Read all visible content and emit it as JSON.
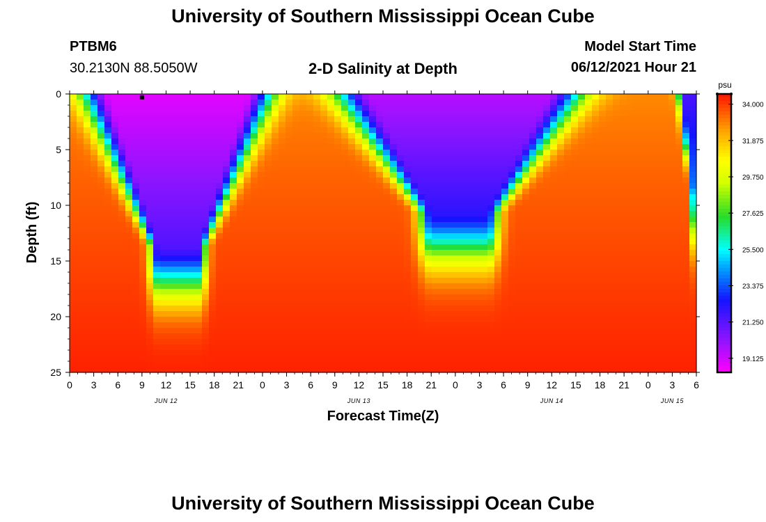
{
  "page": {
    "title_top": "University of Southern Mississippi Ocean Cube",
    "title_bottom": "University of Southern Mississippi Ocean Cube",
    "station_id": "PTBM6",
    "station_coords": "30.2130N  88.5050W",
    "model_start_label": "Model Start Time",
    "model_start_value": "06/12/2021 Hour 21"
  },
  "chart_data": {
    "type": "heatmap",
    "title": "2-D Salinity at Depth",
    "xlabel": "Forecast Time(Z)",
    "ylabel": "Depth (ft)",
    "units": "psu",
    "x_range_hours": [
      0,
      78
    ],
    "y_range_ft": [
      0,
      25
    ],
    "x_ticks": [
      {
        "h": 0,
        "label": "0"
      },
      {
        "h": 3,
        "label": "3"
      },
      {
        "h": 6,
        "label": "6"
      },
      {
        "h": 9,
        "label": "9"
      },
      {
        "h": 12,
        "label": "12"
      },
      {
        "h": 15,
        "label": "15"
      },
      {
        "h": 18,
        "label": "18"
      },
      {
        "h": 21,
        "label": "21"
      },
      {
        "h": 24,
        "label": "0"
      },
      {
        "h": 27,
        "label": "3"
      },
      {
        "h": 30,
        "label": "6"
      },
      {
        "h": 33,
        "label": "9"
      },
      {
        "h": 36,
        "label": "12"
      },
      {
        "h": 39,
        "label": "15"
      },
      {
        "h": 42,
        "label": "18"
      },
      {
        "h": 45,
        "label": "21"
      },
      {
        "h": 48,
        "label": "0"
      },
      {
        "h": 51,
        "label": "3"
      },
      {
        "h": 54,
        "label": "6"
      },
      {
        "h": 57,
        "label": "9"
      },
      {
        "h": 60,
        "label": "12"
      },
      {
        "h": 63,
        "label": "15"
      },
      {
        "h": 66,
        "label": "18"
      },
      {
        "h": 69,
        "label": "21"
      },
      {
        "h": 72,
        "label": "0"
      },
      {
        "h": 75,
        "label": "3"
      },
      {
        "h": 78,
        "label": "6"
      }
    ],
    "date_labels": [
      {
        "h": 12,
        "label": "JUN 12"
      },
      {
        "h": 36,
        "label": "JUN 13"
      },
      {
        "h": 60,
        "label": "JUN 14"
      },
      {
        "h": 75,
        "label": "JUN 15"
      }
    ],
    "y_ticks": [
      0,
      5,
      10,
      15,
      20,
      25
    ],
    "colorbar": {
      "min": 18.3,
      "max": 34.6,
      "tick_values": [
        34.0,
        31.875,
        29.75,
        27.625,
        25.5,
        23.375,
        21.25,
        19.125
      ],
      "tick_labels": [
        "34.000",
        "31.875",
        "29.750",
        "27.625",
        "25.500",
        "23.375",
        "21.250",
        "19.125"
      ]
    },
    "marker": {
      "h": 9,
      "depth_ft": 0.3
    },
    "salinity_profile": {
      "description": "column time (hours) -> fresh-water penetration depth (ft); salinity rises with depth below fresh layer",
      "events": [
        {
          "center_h": 13.5,
          "half_width_top_h": 8.5,
          "half_width_bottom_h": 2.5,
          "depth_ft": 13.5,
          "min_psu": 18.8
        },
        {
          "center_h": 48.5,
          "half_width_top_h": 11,
          "half_width_bottom_h": 3.5,
          "depth_ft": 10.5,
          "min_psu": 19.5
        },
        {
          "center_h": 78.5,
          "half_width_top_h": 2.0,
          "half_width_bottom_h": 0.8,
          "depth_ft": 9,
          "min_psu": 21.5
        }
      ],
      "background_psu": 32.8,
      "deep_psu": 34.4
    }
  }
}
